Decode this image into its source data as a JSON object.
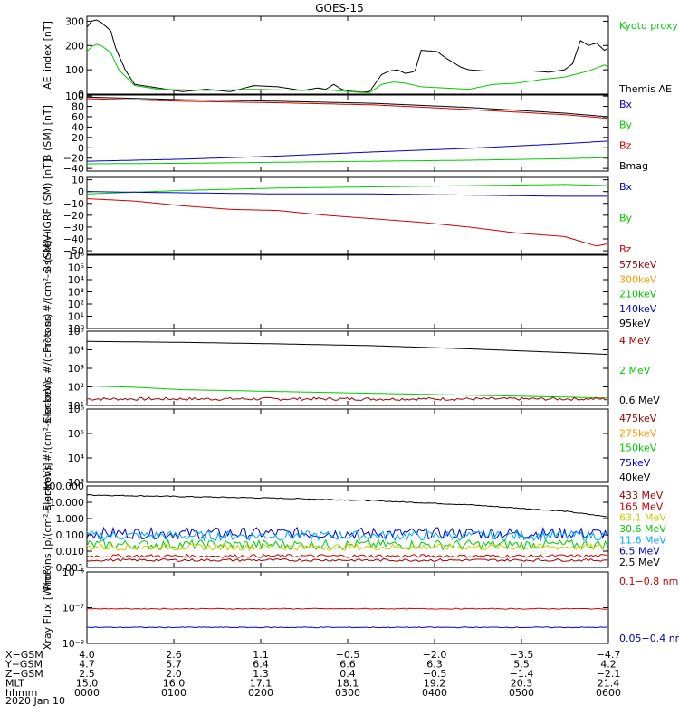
{
  "title": "GOES-15",
  "colors": {
    "black": "#000000",
    "green": "#00cc00",
    "blue": "#0000cc",
    "red": "#cc0000",
    "darkred": "#990000",
    "orange": "#ff9900",
    "yellow": "#cccc00",
    "cyan": "#00aaff"
  },
  "chart_data": [
    {
      "type": "line",
      "ylabel": "AE_index [nT]",
      "ylim": [
        0,
        320
      ],
      "ticks": [
        "0",
        "100",
        "200",
        "300"
      ],
      "legend": [
        {
          "label": "Kyoto proxy AE",
          "color": "green"
        },
        {
          "label": "Themis AE",
          "color": "black"
        }
      ],
      "series": [
        {
          "name": "Themis AE",
          "color": "black",
          "x": [
            0,
            6,
            12,
            18,
            30,
            36,
            48,
            60,
            90,
            120,
            150,
            180,
            210,
            240,
            270,
            290,
            300,
            310,
            320,
            330,
            345,
            355,
            370,
            380,
            390,
            400,
            408,
            412,
            420,
            440,
            450,
            460,
            470,
            480,
            500,
            520,
            540,
            560,
            580,
            600,
            610,
            620,
            630,
            640,
            650,
            655
          ],
          "values": [
            275,
            300,
            305,
            295,
            260,
            190,
            100,
            40,
            25,
            10,
            20,
            10,
            35,
            30,
            15,
            25,
            20,
            40,
            20,
            12,
            8,
            10,
            80,
            95,
            100,
            85,
            90,
            95,
            180,
            175,
            150,
            130,
            110,
            100,
            95,
            95,
            95,
            95,
            90,
            100,
            125,
            220,
            200,
            210,
            180,
            190
          ]
        },
        {
          "name": "Kyoto proxy AE",
          "color": "green",
          "x": [
            0,
            6,
            12,
            18,
            30,
            40,
            60,
            90,
            150,
            210,
            270,
            300,
            330,
            355,
            370,
            385,
            400,
            420,
            450,
            480,
            510,
            540,
            570,
            600,
            630,
            650,
            655
          ],
          "values": [
            175,
            195,
            205,
            200,
            170,
            100,
            35,
            20,
            15,
            20,
            15,
            18,
            10,
            5,
            40,
            50,
            45,
            30,
            25,
            20,
            40,
            45,
            60,
            70,
            95,
            120,
            110
          ]
        }
      ]
    },
    {
      "type": "line",
      "ylabel": "B (SM) [nT]",
      "ylim": [
        -45,
        102
      ],
      "ticks": [
        "100",
        "80",
        "60",
        "40",
        "20",
        "0",
        "−20",
        "−40"
      ],
      "legend": [
        {
          "label": "Bx",
          "color": "blue"
        },
        {
          "label": "By",
          "color": "green"
        },
        {
          "label": "Bz",
          "color": "red"
        },
        {
          "label": "Bmag",
          "color": "black"
        }
      ],
      "series": [
        {
          "name": "Bmag",
          "color": "black",
          "x": [
            0,
            120,
            240,
            360,
            480,
            600,
            655
          ],
          "values": [
            98,
            93,
            90,
            86,
            78,
            67,
            60
          ]
        },
        {
          "name": "Bz",
          "color": "red",
          "x": [
            0,
            120,
            240,
            360,
            480,
            600,
            655
          ],
          "values": [
            95,
            90,
            87,
            83,
            74,
            64,
            57
          ]
        },
        {
          "name": "Bx",
          "color": "blue",
          "x": [
            0,
            120,
            240,
            360,
            480,
            600,
            655
          ],
          "values": [
            -26,
            -22,
            -16,
            -8,
            -1,
            8,
            13
          ]
        },
        {
          "name": "By",
          "color": "green",
          "x": [
            0,
            120,
            240,
            360,
            480,
            600,
            655
          ],
          "values": [
            -31,
            -30,
            -28,
            -26,
            -24,
            -21,
            -19
          ]
        }
      ]
    },
    {
      "type": "line",
      "ylabel": "B (SM)−IGRF (SM) [nT]",
      "ylim": [
        -53,
        12
      ],
      "ticks": [
        "10",
        "0",
        "−10",
        "−20",
        "−30",
        "−40",
        "−50"
      ],
      "legend": [
        {
          "label": "Bx",
          "color": "blue"
        },
        {
          "label": "By",
          "color": "green"
        },
        {
          "label": "Bz",
          "color": "red"
        }
      ],
      "series": [
        {
          "name": "By",
          "color": "green",
          "x": [
            0,
            120,
            240,
            360,
            480,
            600,
            655
          ],
          "values": [
            -2,
            1,
            3,
            4,
            5,
            6,
            5
          ]
        },
        {
          "name": "Bx",
          "color": "blue",
          "x": [
            0,
            120,
            240,
            360,
            480,
            600,
            655
          ],
          "values": [
            0,
            -1,
            -2,
            -2,
            -3,
            -4,
            -4
          ]
        },
        {
          "name": "Bz",
          "color": "red",
          "x": [
            0,
            60,
            120,
            180,
            240,
            300,
            360,
            420,
            480,
            540,
            560,
            600,
            640,
            655
          ],
          "values": [
            -6,
            -8,
            -12,
            -15,
            -16,
            -20,
            -23,
            -26,
            -30,
            -35,
            -36,
            -38,
            -46,
            -44
          ]
        }
      ]
    },
    {
      "type": "line",
      "ylabel": "Protons #/(cm²-s-sr-keV)",
      "ylim_log": [
        0,
        6
      ],
      "ticks": [
        "10⁰",
        "10¹",
        "10²",
        "10³",
        "10⁴",
        "10⁵",
        "10⁶"
      ],
      "legend": [
        {
          "label": "575keV",
          "color": "darkred"
        },
        {
          "label": "300keV",
          "color": "orange"
        },
        {
          "label": "210keV",
          "color": "green"
        },
        {
          "label": "140keV",
          "color": "blue"
        },
        {
          "label": "95keV",
          "color": "black"
        }
      ],
      "series": []
    },
    {
      "type": "line",
      "ylabel": "Electrons #/(cm²-s-sr)",
      "ylim_log": [
        1,
        5
      ],
      "ticks": [
        "10¹",
        "10²",
        "10³",
        "10⁴",
        "10⁵"
      ],
      "legend": [
        {
          "label": "4 MeV",
          "color": "darkred"
        },
        {
          "label": "2 MeV",
          "color": "green"
        },
        {
          "label": "0.6 MeV",
          "color": "black"
        }
      ],
      "series": [
        {
          "name": "0.6 MeV",
          "color": "black",
          "x": [
            0,
            120,
            240,
            360,
            480,
            600,
            655
          ],
          "logvalues": [
            4.45,
            4.4,
            4.32,
            4.22,
            4.05,
            3.85,
            3.75
          ]
        },
        {
          "name": "2 MeV",
          "color": "green",
          "x": [
            0,
            60,
            120,
            240,
            360,
            480,
            600,
            655
          ],
          "logvalues": [
            2.05,
            1.98,
            1.85,
            1.75,
            1.65,
            1.55,
            1.45,
            1.4
          ]
        },
        {
          "name": "4 MeV",
          "color": "darkred",
          "x": [
            0,
            655
          ],
          "logvalues": [
            1.35,
            1.35
          ],
          "noise": 0.08
        }
      ]
    },
    {
      "type": "line",
      "ylabel": "Electrons #/(cm²-s-sr-keV)",
      "ylim_log": [
        3,
        6
      ],
      "ticks": [
        "10³",
        "10⁴",
        "10⁵",
        "10⁶"
      ],
      "legend": [
        {
          "label": "475keV",
          "color": "darkred"
        },
        {
          "label": "275keV",
          "color": "orange"
        },
        {
          "label": "150keV",
          "color": "green"
        },
        {
          "label": "75keV",
          "color": "blue"
        },
        {
          "label": "40keV",
          "color": "black"
        }
      ],
      "series": []
    },
    {
      "type": "line",
      "ylabel": "Protons [p/(cm²-s-sr-keV)]",
      "ylim_log": [
        -3,
        2
      ],
      "ticks": [
        "0.001",
        "0.010",
        "0.100",
        "1.000",
        "10.000",
        "100.000"
      ],
      "legend": [
        {
          "label": "433 MeV",
          "color": "darkred"
        },
        {
          "label": "165 MeV",
          "color": "red"
        },
        {
          "label": "63.1 MeV",
          "color": "yellow"
        },
        {
          "label": "30.6 MeV",
          "color": "green"
        },
        {
          "label": "11.6 MeV",
          "color": "cyan"
        },
        {
          "label": "6.5 MeV",
          "color": "blue"
        },
        {
          "label": "2.5 MeV",
          "color": "black"
        }
      ],
      "series": [
        {
          "name": "2.5 MeV",
          "color": "black",
          "x": [
            0,
            120,
            240,
            360,
            480,
            600,
            655
          ],
          "logvalues": [
            1.45,
            1.35,
            1.25,
            1.1,
            0.85,
            0.45,
            0.1
          ],
          "noise": 0.03
        },
        {
          "name": "6.5 MeV",
          "color": "blue",
          "x": [
            0,
            655
          ],
          "logvalues": [
            -0.9,
            -0.9
          ],
          "noise": 0.35
        },
        {
          "name": "11.6 MeV",
          "color": "cyan",
          "x": [
            0,
            655
          ],
          "logvalues": [
            -1.05,
            -1.05
          ],
          "noise": 0.3
        },
        {
          "name": "30.6 MeV",
          "color": "green",
          "x": [
            0,
            655
          ],
          "logvalues": [
            -1.6,
            -1.6
          ],
          "noise": 0.3
        },
        {
          "name": "63.1 MeV",
          "color": "yellow",
          "x": [
            0,
            655
          ],
          "logvalues": [
            -1.75,
            -1.75
          ],
          "noise": 0.2
        },
        {
          "name": "165 MeV",
          "color": "red",
          "x": [
            0,
            655
          ],
          "logvalues": [
            -2.3,
            -2.3
          ],
          "noise": 0.1
        },
        {
          "name": "433 MeV",
          "color": "darkred",
          "x": [
            0,
            655
          ],
          "logvalues": [
            -2.55,
            -2.55
          ],
          "noise": 0.08
        }
      ]
    },
    {
      "type": "line",
      "ylabel": "Xray Flux [W/m²]",
      "ylim_log": [
        -8,
        -6
      ],
      "ticks": [
        "10⁻⁸",
        "10⁻⁷",
        "10⁻⁶"
      ],
      "legend": [
        {
          "label": "0.1−0.8 nm",
          "color": "red"
        },
        {
          "label": "0.05−0.4 nm",
          "color": "blue"
        }
      ],
      "series": [
        {
          "name": "0.1−0.8 nm",
          "color": "red",
          "x": [
            0,
            655
          ],
          "logvalues": [
            -7.03,
            -7.03
          ],
          "noise": 0.012
        },
        {
          "name": "0.05−0.4 nm",
          "color": "blue",
          "x": [
            0,
            655
          ],
          "logvalues": [
            -7.55,
            -7.55
          ],
          "noise": 0.012
        }
      ]
    }
  ],
  "xaxis": {
    "rows": [
      {
        "label": "X−GSM",
        "values": [
          "4.0",
          "2.6",
          "1.1",
          "−0.5",
          "−2.0",
          "−3.5",
          "−4.7"
        ]
      },
      {
        "label": "Y−GSM",
        "values": [
          "4.7",
          "5.7",
          "6.4",
          "6.6",
          "6.3",
          "5.5",
          "4.2"
        ]
      },
      {
        "label": "Z−GSM",
        "values": [
          "2.5",
          "2.0",
          "1.3",
          "0.4",
          "−0.5",
          "−1.4",
          "−2.1"
        ]
      },
      {
        "label": "MLT",
        "values": [
          "15.0",
          "16.0",
          "17.1",
          "18.1",
          "19.2",
          "20.3",
          "21.4"
        ]
      },
      {
        "label": "hhmm",
        "values": [
          "0000",
          "0100",
          "0200",
          "0300",
          "0400",
          "0500",
          "0600"
        ]
      }
    ],
    "date": "2020 Jan 10"
  }
}
